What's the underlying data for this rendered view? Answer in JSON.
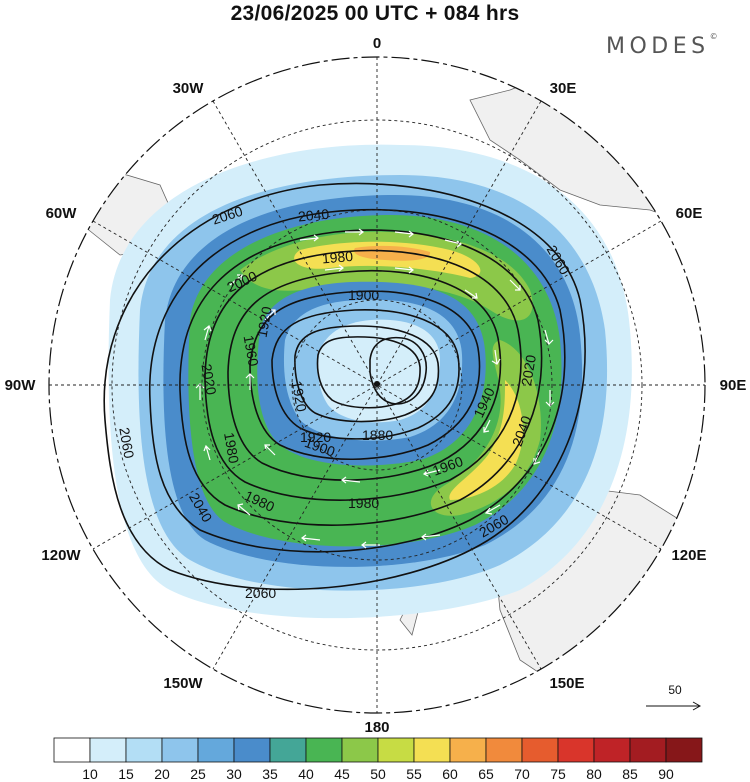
{
  "title": "23/06/2025  00 UTC  + 084 hrs",
  "brand": "MODES",
  "brand_mark": "©",
  "longitude_labels": {
    "n0": "0",
    "e30": "30E",
    "e60": "60E",
    "e90": "90E",
    "e120": "120E",
    "e150": "150E",
    "s180": "180",
    "w150": "150W",
    "w120": "120W",
    "w90": "90W",
    "w60": "60W",
    "w30": "30W"
  },
  "contour_labels": [
    "2060",
    "2040",
    "1980",
    "2060",
    "2000",
    "1900",
    "1920",
    "1960",
    "1920",
    "2020",
    "2020",
    "1920",
    "1940",
    "1880",
    "1900",
    "1960",
    "2060",
    "2040",
    "1980",
    "1980",
    "1980",
    "2040",
    "2060",
    "2060"
  ],
  "reference_vector": {
    "value": "50"
  },
  "colorbar": {
    "labels": [
      "10",
      "15",
      "20",
      "25",
      "30",
      "35",
      "40",
      "45",
      "50",
      "55",
      "60",
      "65",
      "70",
      "75",
      "80",
      "85",
      "90"
    ],
    "colors": [
      "#ffffff",
      "#d4eefa",
      "#b3def5",
      "#8ec5ec",
      "#64a8dc",
      "#4a8ccb",
      "#44a697",
      "#49b553",
      "#8cc849",
      "#c7dc44",
      "#f4df53",
      "#f6b04b",
      "#f18a3c",
      "#e65c2e",
      "#d9352b",
      "#bf2327",
      "#a31c21",
      "#861719"
    ]
  },
  "map": {
    "land_color": "#f0f0f0",
    "coast_color": "#666666",
    "contour_color": "#111111",
    "vector_color": "#ffffff"
  }
}
